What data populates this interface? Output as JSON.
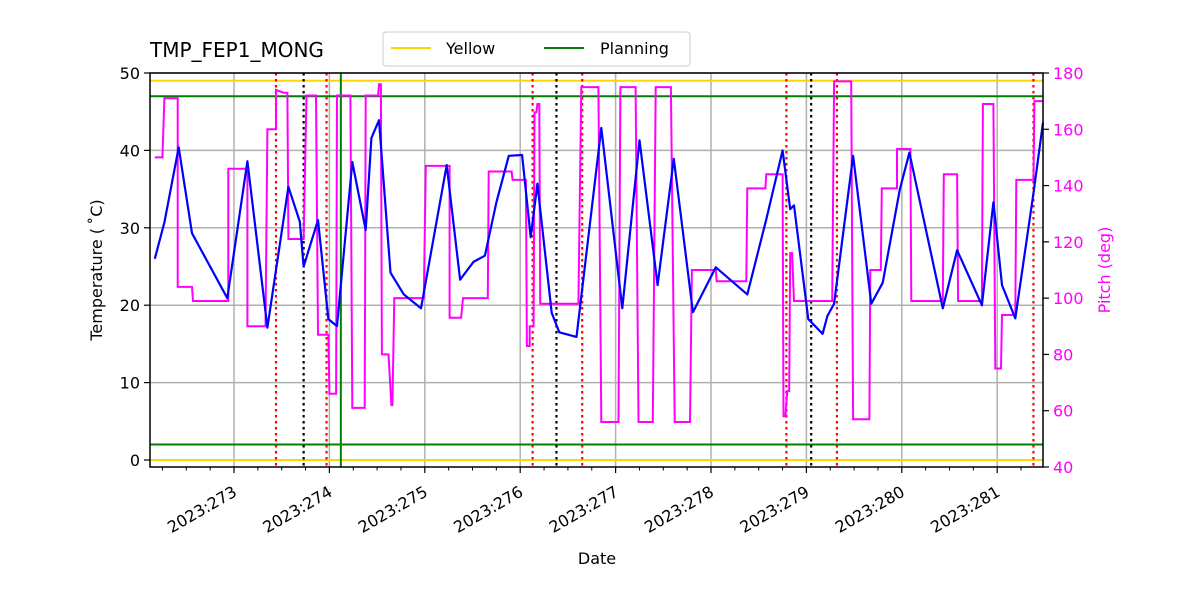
{
  "chart_data": {
    "type": "line",
    "title": "TMP_FEP1_MONG",
    "xlabel": "Date",
    "ylabel": "Temperature ($^\\circ$C)",
    "ylabel_display": "Temperature ( ˚C)",
    "y2label": "Pitch (deg)",
    "xlim": [
      272.12,
      281.48
    ],
    "ylim": [
      -0.9,
      50
    ],
    "y2lim": [
      40,
      180
    ],
    "grid": true,
    "x_ticks": [
      273,
      274,
      275,
      276,
      277,
      278,
      279,
      280,
      281
    ],
    "x_tick_labels": [
      "2023:273",
      "2023:274",
      "2023:275",
      "2023:276",
      "2023:277",
      "2023:278",
      "2023:279",
      "2023:280",
      "2023:281"
    ],
    "y_ticks": [
      0,
      10,
      20,
      30,
      40,
      50
    ],
    "y2_ticks": [
      40,
      60,
      80,
      100,
      120,
      140,
      160,
      180
    ],
    "legend": {
      "position": "upper center (above plot)",
      "entries": [
        {
          "label": "Yellow",
          "color": "#ffd700"
        },
        {
          "label": "Planning",
          "color": "#008000"
        }
      ]
    },
    "limits": {
      "yellow": [
        49,
        0
      ],
      "planning": [
        47,
        2
      ]
    },
    "vertical_markers": {
      "red_dotted": [
        273.44,
        273.97,
        276.13,
        276.65,
        278.79,
        279.32,
        281.38
      ],
      "black_dotted": [
        273.73,
        276.38,
        279.05
      ],
      "green_solid": [
        274.12
      ]
    },
    "series": [
      {
        "name": "TMP_FEP1_MONG",
        "axis": "left",
        "color": "#0000ff",
        "points": [
          [
            272.17,
            26.0
          ],
          [
            272.27,
            30.7
          ],
          [
            272.42,
            40.4
          ],
          [
            272.56,
            29.3
          ],
          [
            272.93,
            20.9
          ],
          [
            273.14,
            38.6
          ],
          [
            273.35,
            17.1
          ],
          [
            273.57,
            35.3
          ],
          [
            273.69,
            30.8
          ],
          [
            273.73,
            25.0
          ],
          [
            273.88,
            31.0
          ],
          [
            273.99,
            18.2
          ],
          [
            274.08,
            17.3
          ],
          [
            274.24,
            38.5
          ],
          [
            274.38,
            29.7
          ],
          [
            274.44,
            41.6
          ],
          [
            274.52,
            43.9
          ],
          [
            274.64,
            24.2
          ],
          [
            274.78,
            21.4
          ],
          [
            274.96,
            19.6
          ],
          [
            275.23,
            38.1
          ],
          [
            275.37,
            23.3
          ],
          [
            275.51,
            25.6
          ],
          [
            275.63,
            26.4
          ],
          [
            275.75,
            33.3
          ],
          [
            275.88,
            39.3
          ],
          [
            276.02,
            39.4
          ],
          [
            276.11,
            28.8
          ],
          [
            276.18,
            35.7
          ],
          [
            276.33,
            19.0
          ],
          [
            276.41,
            16.5
          ],
          [
            276.59,
            15.9
          ],
          [
            276.85,
            42.9
          ],
          [
            277.07,
            19.6
          ],
          [
            277.25,
            41.3
          ],
          [
            277.44,
            22.6
          ],
          [
            277.61,
            38.9
          ],
          [
            277.81,
            19.1
          ],
          [
            278.05,
            24.9
          ],
          [
            278.38,
            21.4
          ],
          [
            278.58,
            31.1
          ],
          [
            278.75,
            40.0
          ],
          [
            278.83,
            32.4
          ],
          [
            278.87,
            32.9
          ],
          [
            279.02,
            18.2
          ],
          [
            279.17,
            16.3
          ],
          [
            279.22,
            18.6
          ],
          [
            279.29,
            20.2
          ],
          [
            279.49,
            39.3
          ],
          [
            279.68,
            20.2
          ],
          [
            279.8,
            22.9
          ],
          [
            279.98,
            35.0
          ],
          [
            280.08,
            39.7
          ],
          [
            280.43,
            19.6
          ],
          [
            280.58,
            27.1
          ],
          [
            280.84,
            20.0
          ],
          [
            280.96,
            33.3
          ],
          [
            281.05,
            22.6
          ],
          [
            281.19,
            18.3
          ],
          [
            281.38,
            34.5
          ],
          [
            281.48,
            43.6
          ]
        ]
      },
      {
        "name": "Pitch",
        "axis": "right",
        "color": "#ff00ff",
        "points": [
          [
            272.17,
            150
          ],
          [
            272.25,
            150
          ],
          [
            272.27,
            171
          ],
          [
            272.41,
            171
          ],
          [
            272.41,
            104
          ],
          [
            272.56,
            104
          ],
          [
            272.57,
            99
          ],
          [
            272.94,
            99
          ],
          [
            272.94,
            146
          ],
          [
            273.14,
            146
          ],
          [
            273.14,
            90
          ],
          [
            273.33,
            90
          ],
          [
            273.35,
            160
          ],
          [
            273.44,
            160
          ],
          [
            273.44,
            174
          ],
          [
            273.52,
            173
          ],
          [
            273.56,
            173
          ],
          [
            273.57,
            121
          ],
          [
            273.73,
            121
          ],
          [
            273.76,
            172
          ],
          [
            273.86,
            172
          ],
          [
            273.88,
            87
          ],
          [
            273.99,
            87
          ],
          [
            274.0,
            66
          ],
          [
            274.07,
            66
          ],
          [
            274.08,
            172
          ],
          [
            274.22,
            172
          ],
          [
            274.24,
            61
          ],
          [
            274.37,
            61
          ],
          [
            274.38,
            172
          ],
          [
            274.51,
            172
          ],
          [
            274.52,
            176
          ],
          [
            274.54,
            176
          ],
          [
            274.55,
            80
          ],
          [
            274.62,
            80
          ],
          [
            274.65,
            62
          ],
          [
            274.66,
            62
          ],
          [
            274.68,
            100
          ],
          [
            274.99,
            100
          ],
          [
            275.01,
            147
          ],
          [
            275.26,
            147
          ],
          [
            275.26,
            93
          ],
          [
            275.38,
            93
          ],
          [
            275.4,
            100
          ],
          [
            275.66,
            100
          ],
          [
            275.67,
            145
          ],
          [
            275.91,
            145
          ],
          [
            275.92,
            142
          ],
          [
            276.06,
            142
          ],
          [
            276.07,
            83
          ],
          [
            276.1,
            83
          ],
          [
            276.1,
            90
          ],
          [
            276.14,
            90
          ],
          [
            276.15,
            166
          ],
          [
            276.17,
            166
          ],
          [
            276.18,
            169
          ],
          [
            276.2,
            169
          ],
          [
            276.21,
            98
          ],
          [
            276.35,
            98
          ],
          [
            276.36,
            98
          ],
          [
            276.61,
            98
          ],
          [
            276.64,
            175
          ],
          [
            276.82,
            175
          ],
          [
            276.85,
            56
          ],
          [
            277.03,
            56
          ],
          [
            277.05,
            175
          ],
          [
            277.21,
            175
          ],
          [
            277.24,
            56
          ],
          [
            277.39,
            56
          ],
          [
            277.42,
            175
          ],
          [
            277.58,
            175
          ],
          [
            277.62,
            56
          ],
          [
            277.78,
            56
          ],
          [
            277.8,
            110
          ],
          [
            278.05,
            110
          ],
          [
            278.06,
            106
          ],
          [
            278.37,
            106
          ],
          [
            278.38,
            139
          ],
          [
            278.57,
            139
          ],
          [
            278.58,
            144
          ],
          [
            278.75,
            144
          ],
          [
            278.76,
            58
          ],
          [
            278.78,
            58
          ],
          [
            278.8,
            67
          ],
          [
            278.82,
            67
          ],
          [
            278.83,
            116
          ],
          [
            278.85,
            116
          ],
          [
            278.87,
            99
          ],
          [
            279.27,
            99
          ],
          [
            279.29,
            177
          ],
          [
            279.47,
            177
          ],
          [
            279.49,
            57
          ],
          [
            279.66,
            57
          ],
          [
            279.67,
            110
          ],
          [
            279.78,
            110
          ],
          [
            279.79,
            139
          ],
          [
            279.95,
            139
          ],
          [
            279.95,
            153
          ],
          [
            280.09,
            153
          ],
          [
            280.1,
            99
          ],
          [
            280.43,
            99
          ],
          [
            280.44,
            144
          ],
          [
            280.58,
            144
          ],
          [
            280.59,
            99
          ],
          [
            280.84,
            99
          ],
          [
            280.85,
            169
          ],
          [
            280.96,
            169
          ],
          [
            280.98,
            75
          ],
          [
            281.04,
            75
          ],
          [
            281.05,
            94
          ],
          [
            281.19,
            94
          ],
          [
            281.2,
            142
          ],
          [
            281.38,
            142
          ],
          [
            281.39,
            170
          ],
          [
            281.48,
            170
          ]
        ]
      }
    ]
  }
}
